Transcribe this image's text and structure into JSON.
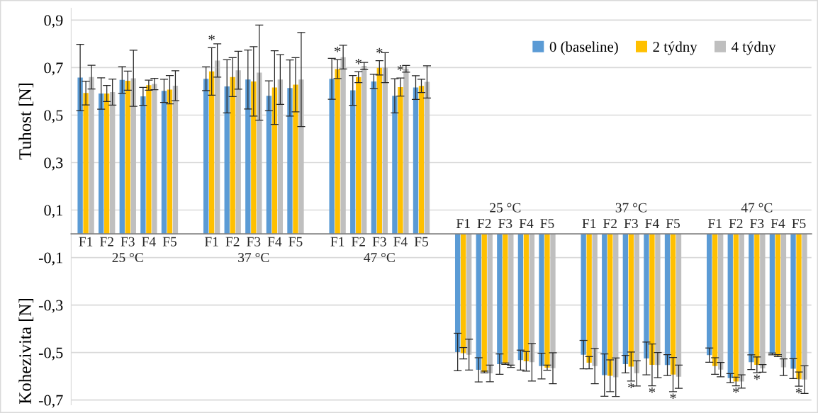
{
  "chart_data": {
    "type": "bar",
    "ylabel": "Tuhost [N]",
    "categories": [
      "F1",
      "F2",
      "F3\n25 °C",
      "F4",
      "F5",
      null,
      "F1",
      "F2",
      "F3\n37 °C",
      "F4",
      "F5",
      null,
      "F1",
      "F2",
      "F3\n47 °C",
      "F4",
      "F5",
      null,
      "F1",
      "F2",
      "25 °C\nF3",
      "F4",
      "F5",
      null,
      "F1",
      "F2",
      "37 °C\nF3",
      "F4",
      "F5",
      null,
      "F1",
      "F2",
      "47 °C\nF3",
      "F4",
      "F5"
    ],
    "series": [
      {
        "name": "0 (baseline)",
        "color": "#5b9bd5",
        "values": [
          0.658,
          0.591,
          0.648,
          0.579,
          0.602,
          null,
          0.653,
          0.621,
          0.65,
          0.581,
          0.614,
          null,
          0.653,
          0.604,
          0.642,
          0.581,
          0.616,
          null,
          -0.498,
          -0.573,
          -0.549,
          -0.532,
          -0.557,
          null,
          -0.509,
          -0.595,
          -0.549,
          -0.525,
          -0.553,
          null,
          -0.511,
          -0.608,
          -0.541,
          -0.506,
          -0.568
        ],
        "errors": [
          0.14,
          0.066,
          0.056,
          0.038,
          0.049,
          null,
          0.05,
          0.112,
          0.124,
          0.063,
          0.118,
          null,
          0.086,
          0.063,
          0.03,
          0.072,
          0.05,
          null,
          0.079,
          0.051,
          0.043,
          0.042,
          0.054,
          null,
          0.06,
          0.089,
          0.037,
          0.069,
          0.044,
          null,
          0.03,
          0.019,
          0.031,
          0.004,
          0.042
        ],
        "value_labels": [
          null,
          null,
          null,
          null,
          null,
          null,
          null,
          null,
          null,
          null,
          null,
          null,
          null,
          null,
          null,
          null,
          null,
          null,
          null,
          null,
          null,
          null,
          null,
          null,
          null,
          null,
          null,
          null,
          null,
          null,
          null,
          null,
          null,
          null,
          null
        ]
      },
      {
        "name": "2 týdny",
        "color": "#ffc000",
        "values": [
          0.593,
          0.591,
          0.645,
          0.626,
          0.607,
          null,
          0.684,
          0.66,
          0.642,
          0.616,
          0.628,
          null,
          0.694,
          0.66,
          0.699,
          0.618,
          0.623,
          null,
          -0.503,
          -0.582,
          -0.547,
          -0.537,
          -0.564,
          null,
          -0.543,
          -0.598,
          -0.559,
          -0.552,
          -0.593,
          null,
          -0.557,
          -0.622,
          -0.552,
          -0.513,
          -0.612
        ],
        "errors": [
          0.05,
          0.034,
          0.04,
          0.021,
          0.06,
          null,
          0.1,
          0.082,
          0.146,
          0.155,
          0.114,
          null,
          0.04,
          0.023,
          0.03,
          0.038,
          0.028,
          null,
          0.024,
          0.004,
          0.003,
          0.041,
          0.011,
          null,
          0.026,
          0.067,
          0.061,
          0.088,
          0.072,
          null,
          0.035,
          0.018,
          0.033,
          0.004,
          0.03
        ],
        "value_labels": [
          null,
          null,
          null,
          null,
          null,
          null,
          "*",
          null,
          null,
          null,
          null,
          null,
          "*",
          "*",
          "*",
          "*",
          null,
          null,
          null,
          null,
          null,
          null,
          null,
          null,
          null,
          null,
          "*",
          "*",
          "*",
          null,
          null,
          "*",
          "*",
          null,
          "*"
        ]
      },
      {
        "name": "4 týdny",
        "color": "#bfbfbf",
        "values": [
          0.66,
          0.597,
          0.655,
          0.631,
          0.624,
          null,
          0.73,
          0.689,
          0.679,
          0.65,
          0.65,
          null,
          0.744,
          0.707,
          0.7,
          0.695,
          0.64,
          null,
          -0.509,
          -0.588,
          -0.558,
          -0.541,
          -0.566,
          null,
          -0.557,
          -0.604,
          -0.588,
          -0.553,
          -0.602,
          null,
          -0.572,
          -0.622,
          -0.567,
          -0.562,
          -0.614
        ],
        "errors": [
          0.05,
          0.055,
          0.118,
          0.024,
          0.063,
          null,
          0.07,
          0.08,
          0.2,
          0.105,
          0.198,
          null,
          0.05,
          0.015,
          0.063,
          0.014,
          0.068,
          null,
          0.065,
          0.035,
          0.005,
          0.079,
          0.065,
          null,
          0.074,
          0.081,
          0.053,
          0.053,
          0.049,
          null,
          0.03,
          0.028,
          0.016,
          0.035,
          0.058
        ],
        "value_labels": [
          null,
          null,
          null,
          null,
          null,
          null,
          null,
          null,
          null,
          null,
          null,
          null,
          null,
          null,
          null,
          null,
          null,
          null,
          null,
          null,
          null,
          null,
          null,
          null,
          null,
          null,
          null,
          null,
          null,
          null,
          null,
          null,
          null,
          null,
          null
        ]
      }
    ],
    "ylim": [
      -0.72,
      0.95
    ],
    "yticks": [
      {
        "value": -0.7,
        "label": "-0,7"
      },
      {
        "value": -0.5,
        "label": "-0,5"
      },
      {
        "value": -0.3,
        "label": "-0,3"
      },
      {
        "value": -0.1,
        "label": "-0,1"
      },
      {
        "value": 0.1,
        "label": "0,1"
      },
      {
        "value": 0.3,
        "label": "0,3"
      },
      {
        "value": 0.5,
        "label": "0,5"
      },
      {
        "value": 0.7,
        "label": "0,7"
      },
      {
        "value": 0.9,
        "label": "0,9"
      }
    ],
    "grid": "y",
    "legend": "top right",
    "annotations": [
      "Kohezivita [N]"
    ]
  }
}
